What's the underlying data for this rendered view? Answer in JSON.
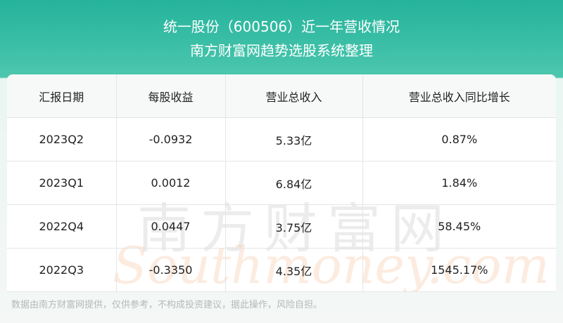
{
  "header": {
    "title": "统一股份（600506）近一年营收情况",
    "subtitle": "南方财富网趋势选股系统整理"
  },
  "table": {
    "columns": [
      "汇报日期",
      "每股收益",
      "营业总收入",
      "营业总收入同比增长"
    ],
    "rows": [
      [
        "2023Q2",
        "-0.0932",
        "5.33亿",
        "0.87%"
      ],
      [
        "2023Q1",
        "0.0012",
        "6.84亿",
        "1.84%"
      ],
      [
        "2022Q4",
        "0.0447",
        "3.75亿",
        "58.45%"
      ],
      [
        "2022Q3",
        "-0.3350",
        "4.35亿",
        "1545.17%"
      ]
    ]
  },
  "watermark": {
    "cn": "南方财富网",
    "en": "Southmoney.com"
  },
  "footer": {
    "note": "数据由南方财富网提供，仅供参考，不构成投资建议，据此操作，风险自担。"
  }
}
